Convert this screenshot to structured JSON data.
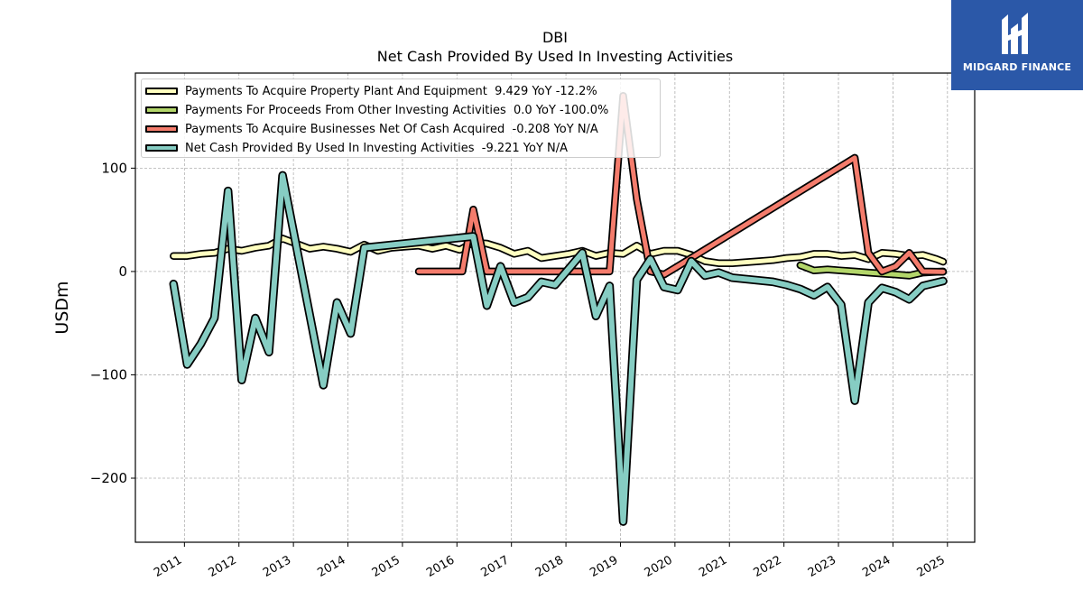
{
  "title_line1": "DBI",
  "title_line2": "Net Cash Provided By Used In Investing Activities",
  "logo": {
    "text": "MIDGARD FINANCE",
    "color": "#2b58a8"
  },
  "chart_data": {
    "type": "line",
    "ylabel": "USDm",
    "xlim": [
      2010.1,
      2025.5
    ],
    "ylim": [
      -262,
      192
    ],
    "grid": true,
    "legend_position": "top-left",
    "x_ticks": [
      2011,
      2012,
      2013,
      2014,
      2015,
      2016,
      2017,
      2018,
      2019,
      2020,
      2021,
      2022,
      2023,
      2024,
      2025
    ],
    "y_ticks": [
      100,
      0,
      -100,
      -200
    ],
    "y_tick_labels": [
      "100",
      "0",
      "−100",
      "−200"
    ],
    "series": [
      {
        "name": "Payments To Acquire Property Plant And Equipment  9.429 YoY -12.2%",
        "color": "#ffffc0",
        "width": 5,
        "points": [
          [
            2010.8,
            15
          ],
          [
            2011.05,
            15
          ],
          [
            2011.3,
            17
          ],
          [
            2011.55,
            18
          ],
          [
            2011.8,
            22
          ],
          [
            2012.05,
            20
          ],
          [
            2012.3,
            23
          ],
          [
            2012.55,
            25
          ],
          [
            2012.8,
            32
          ],
          [
            2013.05,
            27
          ],
          [
            2013.3,
            22
          ],
          [
            2013.55,
            24
          ],
          [
            2013.8,
            22
          ],
          [
            2014.05,
            19
          ],
          [
            2014.3,
            26
          ],
          [
            2014.55,
            20
          ],
          [
            2014.8,
            23
          ],
          [
            2015.05,
            24
          ],
          [
            2015.3,
            25
          ],
          [
            2015.55,
            22
          ],
          [
            2015.8,
            25
          ],
          [
            2016.05,
            21
          ],
          [
            2016.3,
            28
          ],
          [
            2016.55,
            27
          ],
          [
            2016.8,
            23
          ],
          [
            2017.05,
            17
          ],
          [
            2017.3,
            20
          ],
          [
            2017.55,
            13
          ],
          [
            2017.8,
            15
          ],
          [
            2018.05,
            17
          ],
          [
            2018.3,
            20
          ],
          [
            2018.55,
            15
          ],
          [
            2018.8,
            18
          ],
          [
            2019.05,
            17
          ],
          [
            2019.3,
            25
          ],
          [
            2019.55,
            17
          ],
          [
            2019.8,
            20
          ],
          [
            2020.05,
            20
          ],
          [
            2020.3,
            16
          ],
          [
            2020.55,
            10
          ],
          [
            2020.8,
            8
          ],
          [
            2021.05,
            8
          ],
          [
            2021.3,
            9
          ],
          [
            2021.55,
            10
          ],
          [
            2021.8,
            11
          ],
          [
            2022.05,
            13
          ],
          [
            2022.3,
            14
          ],
          [
            2022.55,
            17
          ],
          [
            2022.8,
            17
          ],
          [
            2023.05,
            15
          ],
          [
            2023.3,
            16
          ],
          [
            2023.55,
            12
          ],
          [
            2023.8,
            18
          ],
          [
            2024.05,
            17
          ],
          [
            2024.3,
            15
          ],
          [
            2024.55,
            16
          ],
          [
            2024.8,
            12
          ],
          [
            2024.92,
            9.429
          ]
        ]
      },
      {
        "name": "Payments For Proceeds From Other Investing Activities  0.0 YoY -100.0%",
        "color": "#b3d66a",
        "width": 5,
        "points": [
          [
            2022.3,
            6
          ],
          [
            2022.55,
            1
          ],
          [
            2022.8,
            2
          ],
          [
            2023.05,
            1
          ],
          [
            2023.3,
            0
          ],
          [
            2023.55,
            -1
          ],
          [
            2023.8,
            -2
          ],
          [
            2024.05,
            -3
          ],
          [
            2024.3,
            -4
          ],
          [
            2024.55,
            -1
          ],
          [
            2024.92,
            0.0
          ]
        ]
      },
      {
        "name": "Payments To Acquire Businesses Net Of Cash Acquired  -0.208 YoY N/A",
        "color": "#f47c6c",
        "width": 5,
        "points": [
          [
            2015.3,
            0
          ],
          [
            2016.1,
            0
          ],
          [
            2016.3,
            60
          ],
          [
            2016.55,
            0
          ],
          [
            2017.8,
            0
          ],
          [
            2018.8,
            0
          ],
          [
            2019.05,
            170
          ],
          [
            2019.3,
            70
          ],
          [
            2019.55,
            0
          ],
          [
            2019.8,
            -3
          ],
          [
            2020.05,
            5
          ],
          [
            2023.3,
            110
          ],
          [
            2023.55,
            18
          ],
          [
            2023.8,
            0
          ],
          [
            2024.05,
            5
          ],
          [
            2024.3,
            18
          ],
          [
            2024.55,
            0
          ],
          [
            2024.92,
            -0.208
          ]
        ]
      },
      {
        "name": "Net Cash Provided By Used In Investing Activities  -9.221 YoY N/A",
        "color": "#86cdc3",
        "width": 6,
        "points": [
          [
            2010.8,
            -12
          ],
          [
            2011.05,
            -90
          ],
          [
            2011.3,
            -70
          ],
          [
            2011.55,
            -45
          ],
          [
            2011.8,
            78
          ],
          [
            2012.05,
            -105
          ],
          [
            2012.3,
            -45
          ],
          [
            2012.55,
            -78
          ],
          [
            2012.8,
            93
          ],
          [
            2013.55,
            -110
          ],
          [
            2013.8,
            -30
          ],
          [
            2014.05,
            -60
          ],
          [
            2014.3,
            23
          ],
          [
            2016.3,
            34
          ],
          [
            2016.55,
            -33
          ],
          [
            2016.8,
            5
          ],
          [
            2017.05,
            -30
          ],
          [
            2017.3,
            -25
          ],
          [
            2017.55,
            -10
          ],
          [
            2017.8,
            -13
          ],
          [
            2018.3,
            18
          ],
          [
            2018.55,
            -43
          ],
          [
            2018.8,
            -14
          ],
          [
            2019.05,
            -242
          ],
          [
            2019.3,
            -8
          ],
          [
            2019.55,
            12
          ],
          [
            2019.8,
            -15
          ],
          [
            2020.05,
            -18
          ],
          [
            2020.3,
            10
          ],
          [
            2020.55,
            -4
          ],
          [
            2020.8,
            -1
          ],
          [
            2021.05,
            -6
          ],
          [
            2021.8,
            -10
          ],
          [
            2022.05,
            -13
          ],
          [
            2022.3,
            -17
          ],
          [
            2022.55,
            -23
          ],
          [
            2022.8,
            -15
          ],
          [
            2023.05,
            -32
          ],
          [
            2023.3,
            -125
          ],
          [
            2023.55,
            -30
          ],
          [
            2023.8,
            -16
          ],
          [
            2024.05,
            -20
          ],
          [
            2024.3,
            -27
          ],
          [
            2024.55,
            -14
          ],
          [
            2024.92,
            -9.221
          ]
        ]
      }
    ]
  }
}
